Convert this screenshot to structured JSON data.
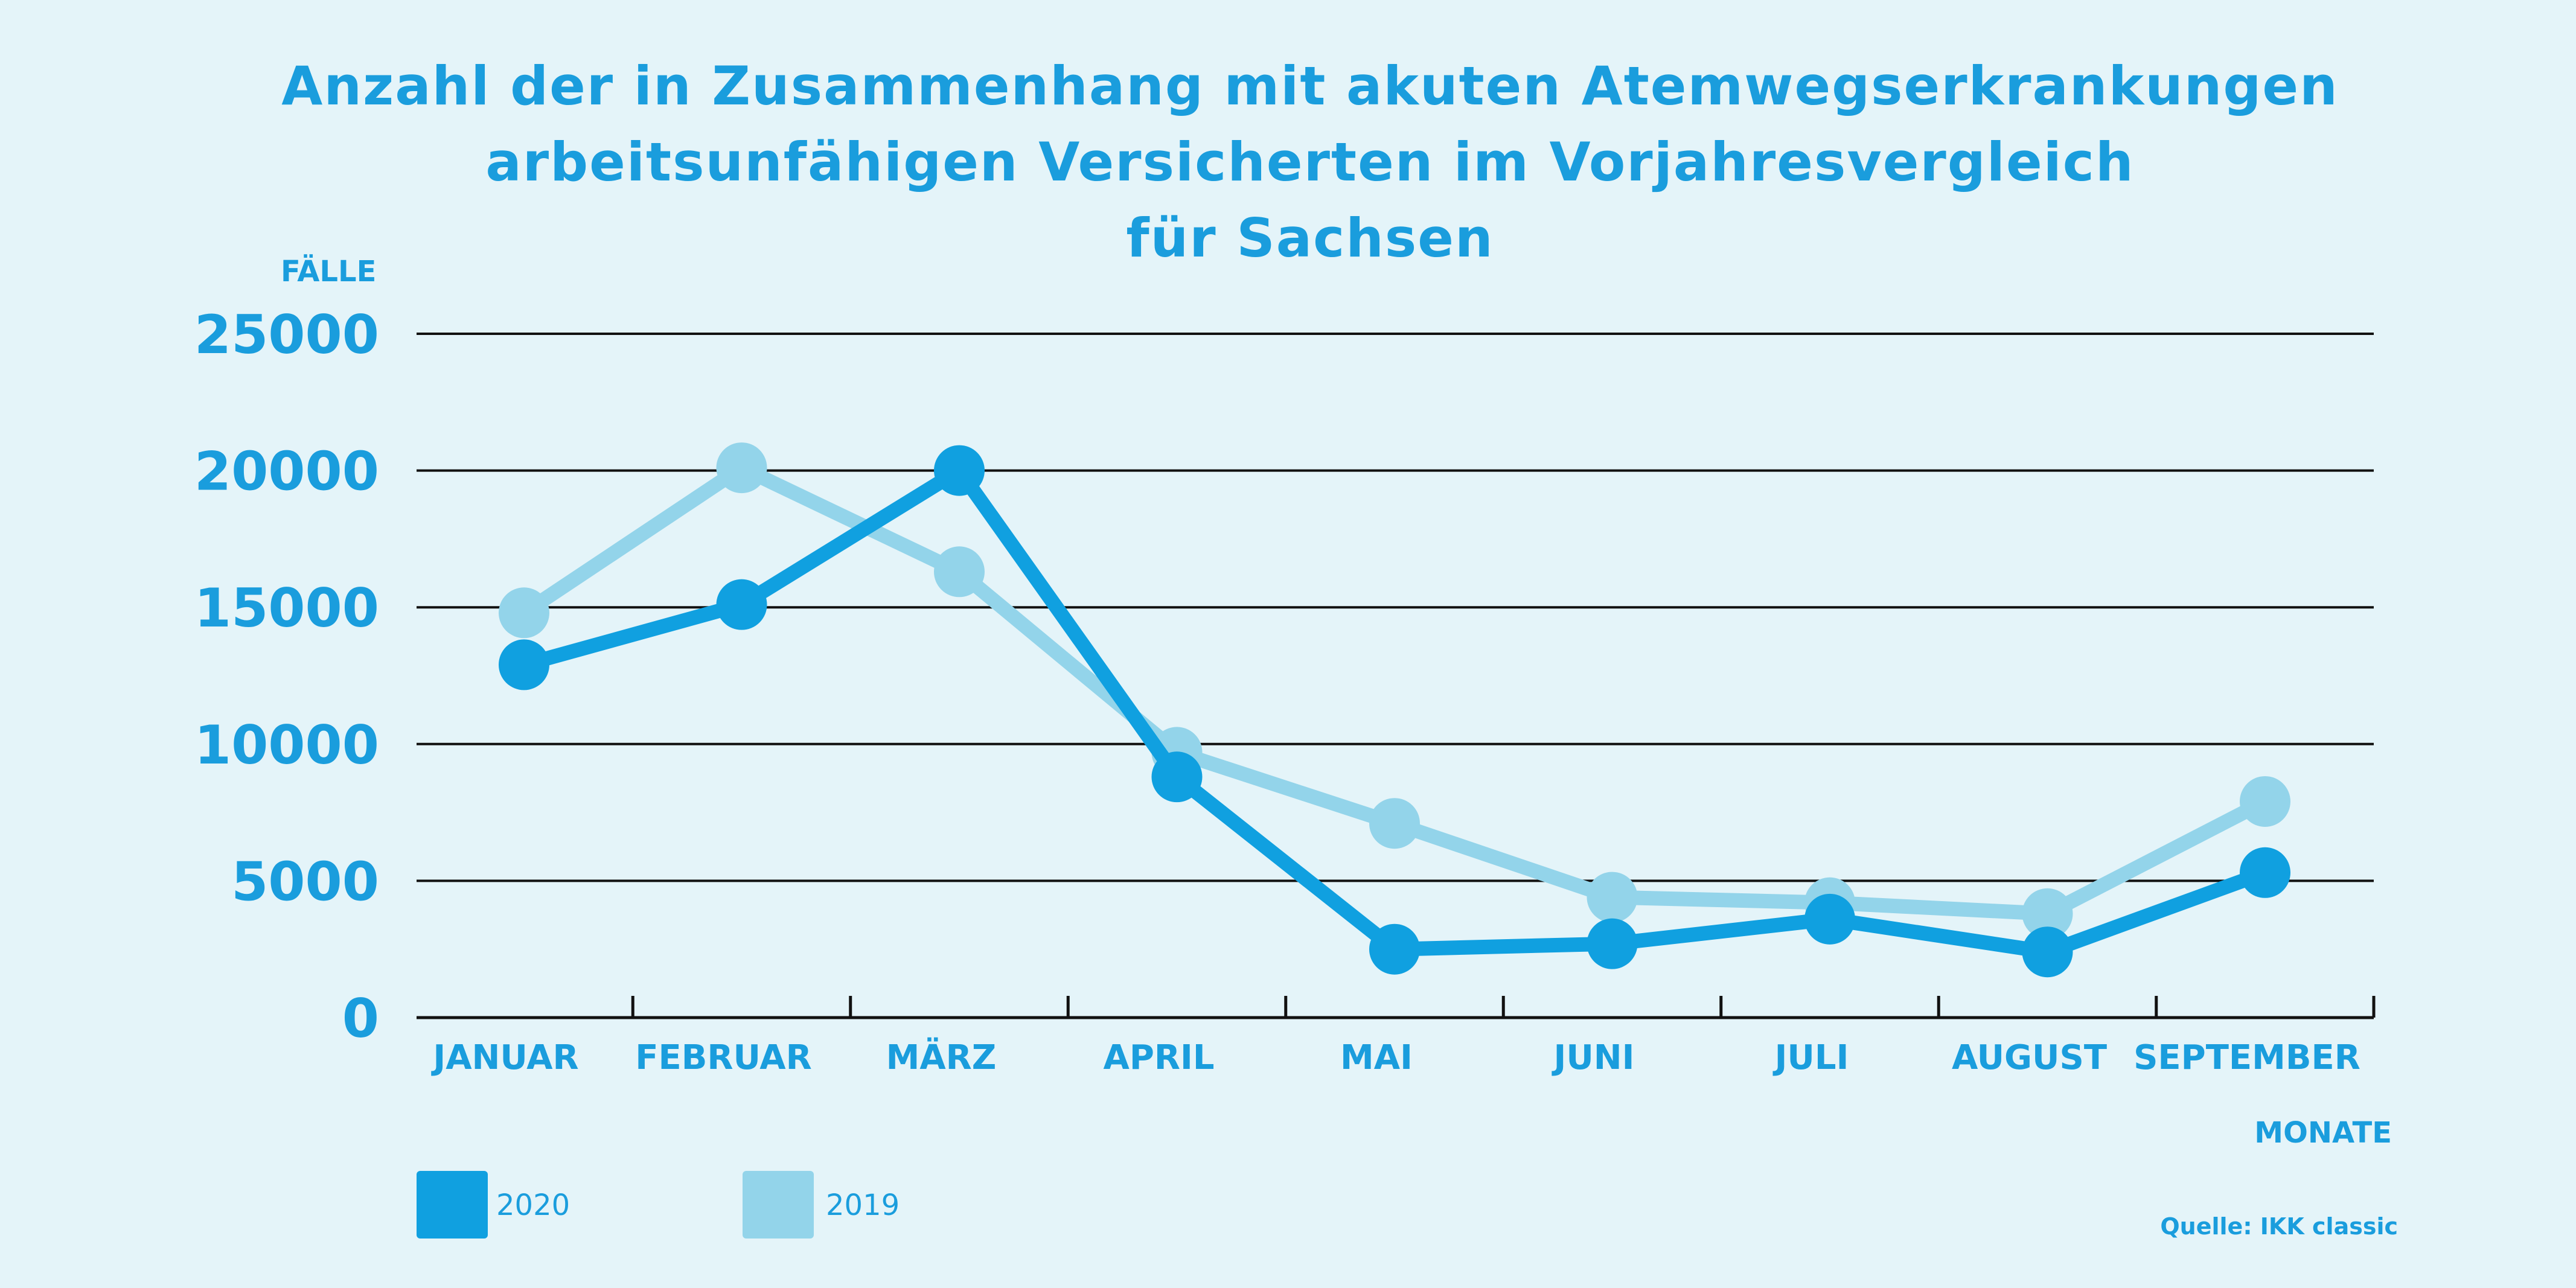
{
  "title_lines": [
    "Anzahl der in Zusammenhang mit akuten Atemwegserkrankungen",
    "arbeitsunfähigen Versicherten im Vorjahresvergleich",
    "für Sachsen"
  ],
  "source": "Quelle: IKK classic",
  "chart_data": {
    "type": "line",
    "categories": [
      "JANUAR",
      "FEBRUAR",
      "MÄRZ",
      "APRIL",
      "MAI",
      "JUNI",
      "JULI",
      "AUGUST",
      "SEPTEMBER"
    ],
    "series": [
      {
        "name": "2019",
        "color": "#93d4ea",
        "values": [
          14800,
          20100,
          16300,
          9700,
          7100,
          4400,
          4200,
          3800,
          7900
        ]
      },
      {
        "name": "2020",
        "color": "#10a0e0",
        "values": [
          12900,
          15100,
          20000,
          8800,
          2500,
          2700,
          3600,
          2400,
          5300
        ]
      }
    ],
    "ylabel": "FÄLLE",
    "xlabel": "MONATE",
    "ylim": [
      0,
      25000
    ],
    "yticks": [
      "0",
      "5000",
      "10000",
      "15000",
      "20000",
      "25000"
    ],
    "grid": true,
    "legend": [
      {
        "label": "2020",
        "color": "#10a0e0"
      },
      {
        "label": "2019",
        "color": "#93d4ea"
      }
    ],
    "legend_position": "bottom-left"
  }
}
